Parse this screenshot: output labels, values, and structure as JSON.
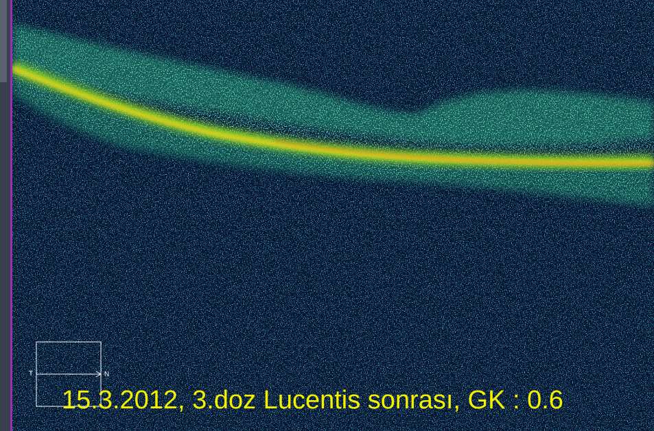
{
  "orientation": {
    "left": "T",
    "right": "N"
  },
  "caption": "15.3.2012, 3.doz Lucentis sonrası, GK : 0.6"
}
